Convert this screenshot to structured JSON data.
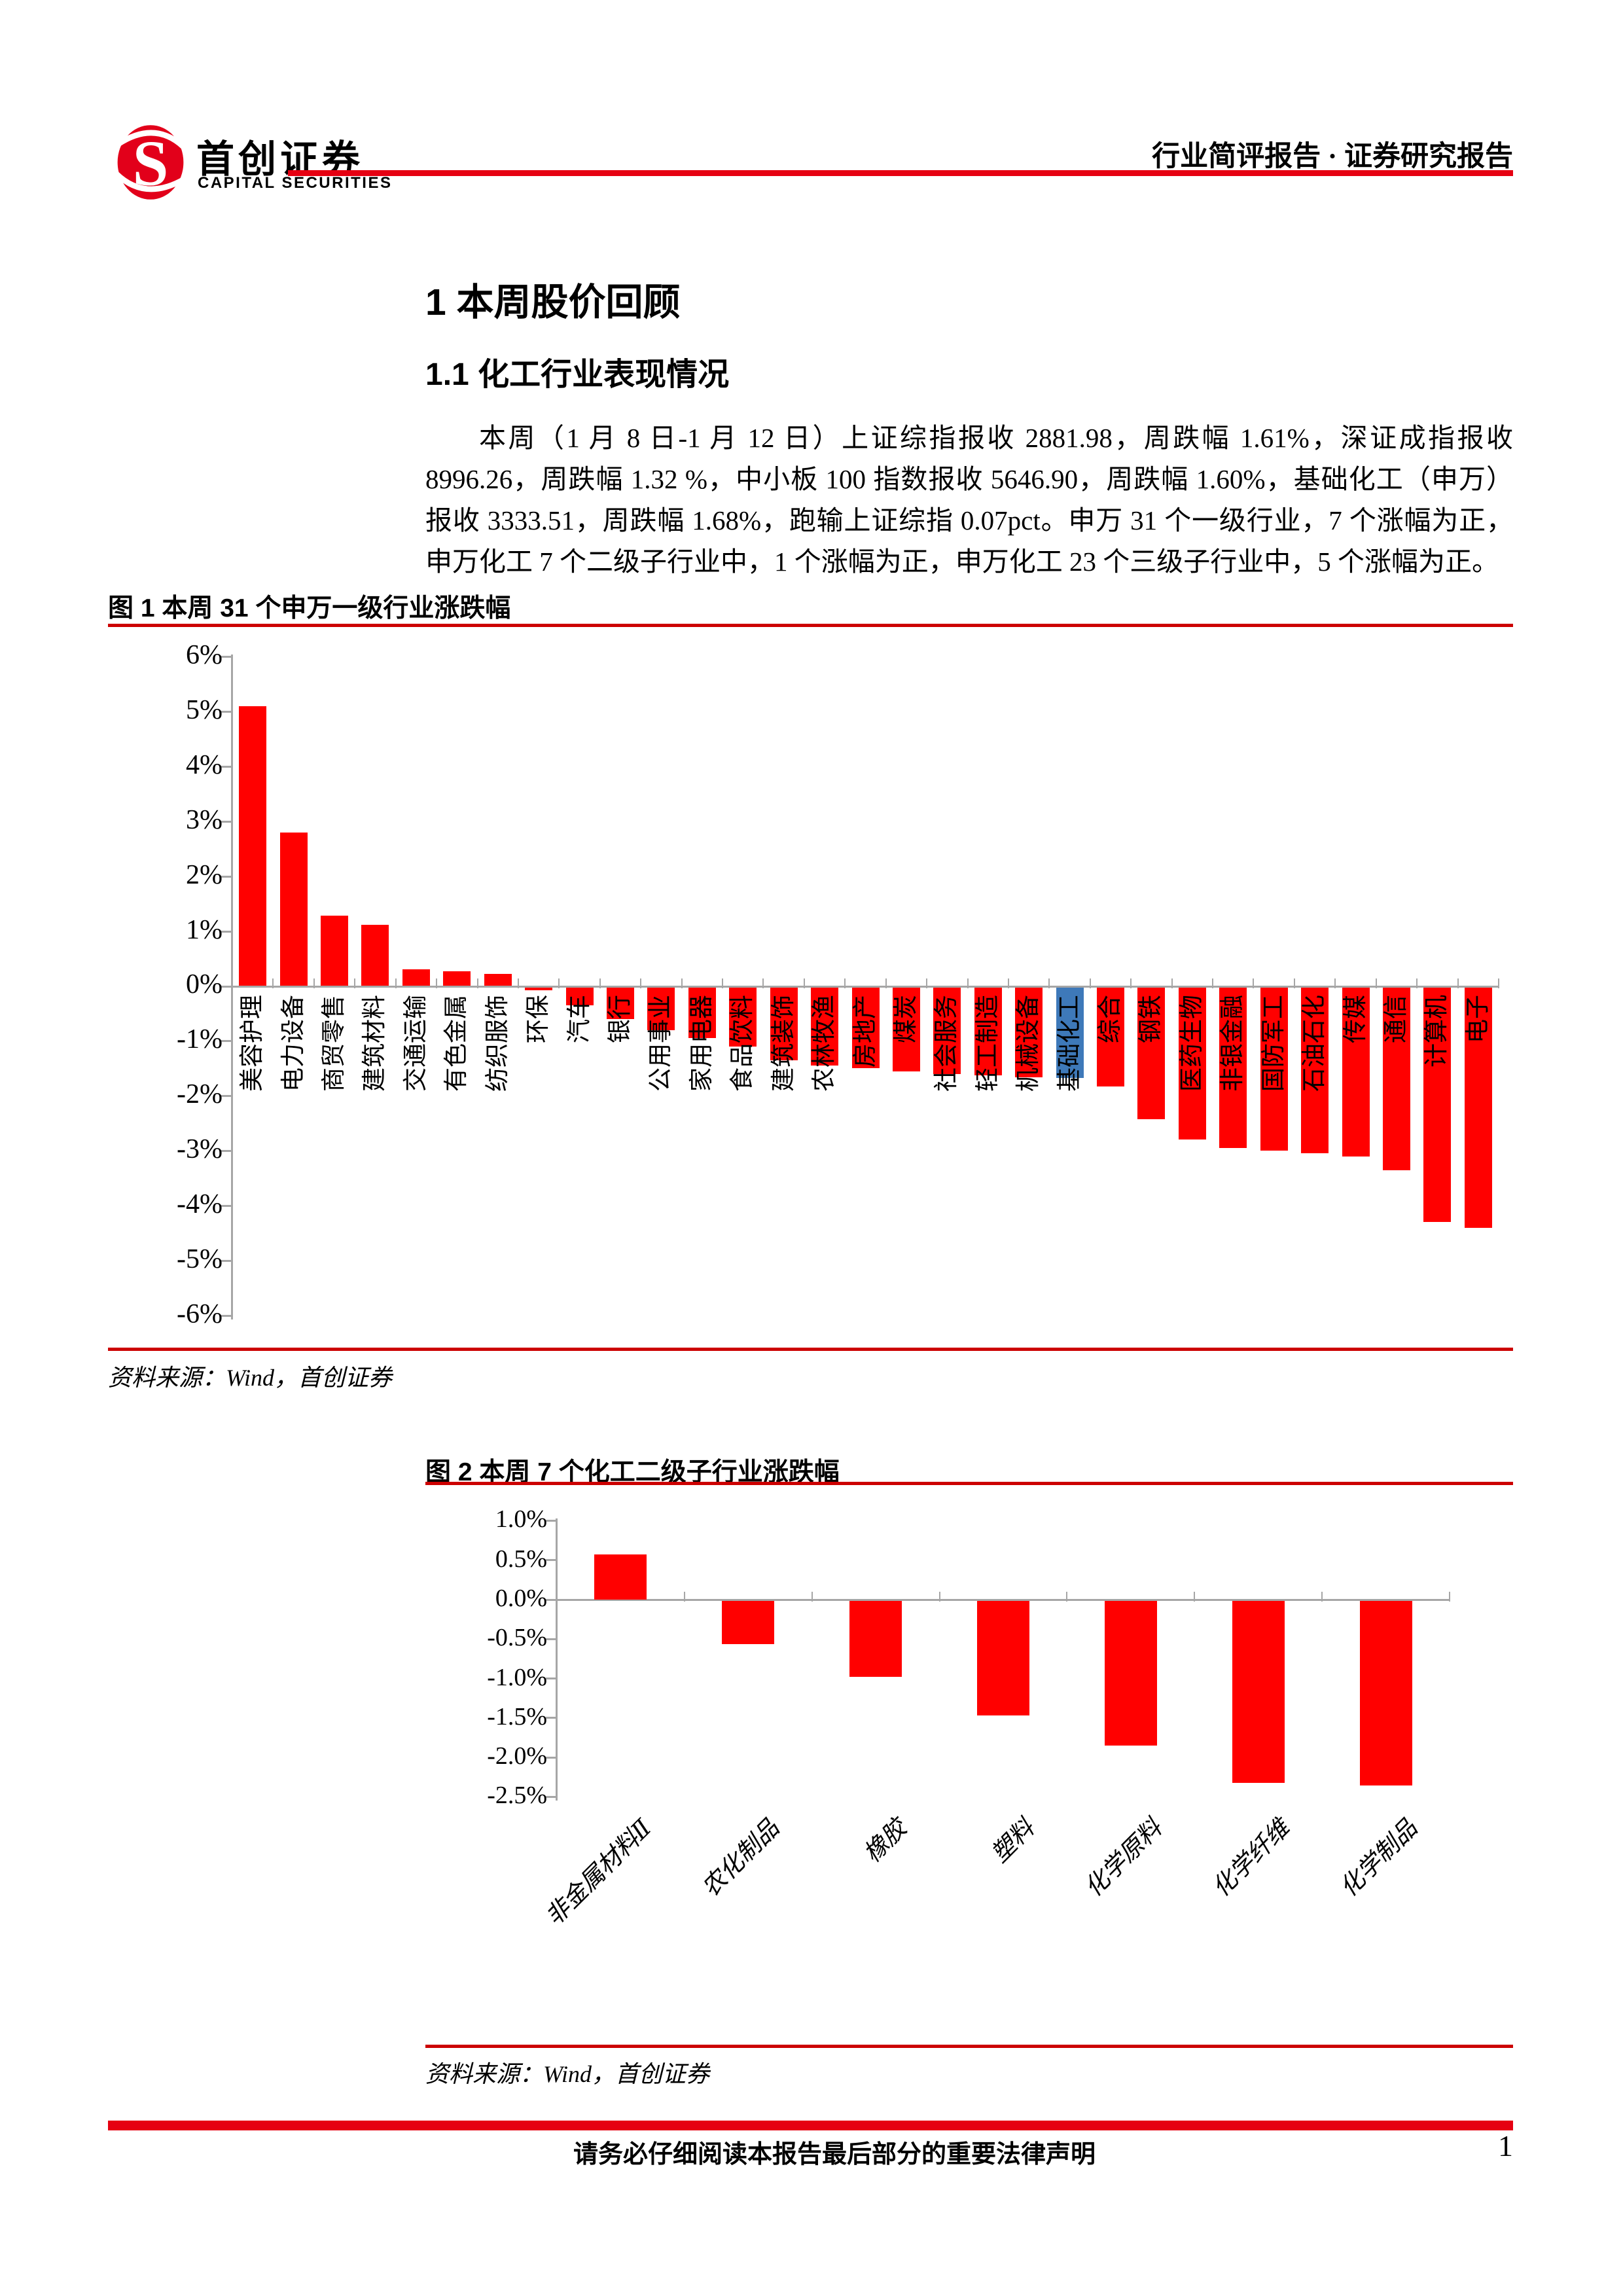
{
  "header": {
    "brand_cn": "首创证券",
    "brand_en": "CAPITAL SECURITIES",
    "report_type": "行业简评报告 · 证券研究报告"
  },
  "headings": {
    "h1": "1 本周股价回顾",
    "h2": "1.1 化工行业表现情况"
  },
  "paragraph": "本周（1 月 8 日-1 月 12 日）上证综指报收 2881.98，周跌幅 1.61%，深证成指报收 8996.26，周跌幅 1.32 %，中小板 100 指数报收 5646.90，周跌幅 1.60%，基础化工（申万）报收 3333.51，周跌幅 1.68%，跑输上证综指 0.07pct。申万 31 个一级行业，7 个涨幅为正，申万化工 7 个二级子行业中，1 个涨幅为正，申万化工 23 个三级子行业中，5 个涨幅为正。",
  "figure1": {
    "caption": "图 1 本周 31 个申万一级行业涨跌幅",
    "source": "资料来源：Wind，首创证券"
  },
  "figure2": {
    "caption": "图 2 本周 7 个化工二级子行业涨跌幅",
    "source": "资料来源：Wind，首创证券"
  },
  "footer": {
    "disclaimer": "请务必仔细阅读本报告最后部分的重要法律声明",
    "page_number": "1"
  },
  "colors": {
    "bar_red": "#ff0000",
    "bar_highlight_blue": "#3e79b9",
    "accent_red": "#e60012",
    "caption_line_red": "#cc0000",
    "axis_gray": "#a6a6a6"
  },
  "chart_data": [
    {
      "id": "fig1",
      "type": "bar",
      "title": "图 1 本周 31 个申万一级行业涨跌幅",
      "unit": "%",
      "categories": [
        "美容护理",
        "电力设备",
        "商贸零售",
        "建筑材料",
        "交通运输",
        "有色金属",
        "纺织服饰",
        "环保",
        "汽车",
        "银行",
        "公用事业",
        "家用电器",
        "食品饮料",
        "建筑装饰",
        "农林牧渔",
        "房地产",
        "煤炭",
        "社会服务",
        "轻工制造",
        "机械设备",
        "基础化工",
        "综合",
        "钢铁",
        "医药生物",
        "非银金融",
        "国防军工",
        "石油石化",
        "传媒",
        "通信",
        "计算机",
        "电子"
      ],
      "values": [
        5.1,
        2.8,
        1.28,
        1.12,
        0.3,
        0.27,
        0.22,
        -0.08,
        -0.35,
        -0.6,
        -0.8,
        -0.95,
        -1.1,
        -1.35,
        -1.45,
        -1.5,
        -1.55,
        -1.6,
        -1.63,
        -1.66,
        -1.68,
        -1.83,
        -2.42,
        -2.8,
        -2.95,
        -3.0,
        -3.05,
        -3.1,
        -3.35,
        -4.3,
        -4.4
      ],
      "highlight": {
        "category": "基础化工",
        "color": "#3e79b9"
      },
      "bar_color": "#ff0000",
      "ylim": [
        -6,
        6
      ],
      "yticks": [
        6,
        5,
        4,
        3,
        2,
        1,
        0,
        -1,
        -2,
        -3,
        -4,
        -5,
        -6
      ],
      "ytick_labels": [
        "6%",
        "5%",
        "4%",
        "3%",
        "2%",
        "1%",
        "0%",
        "-1%",
        "-2%",
        "-3%",
        "-4%",
        "-5%",
        "-6%"
      ],
      "xlabel_rotation": -90,
      "grid": false,
      "legend": null
    },
    {
      "id": "fig2",
      "type": "bar",
      "title": "图 2 本周 7 个化工二级子行业涨跌幅",
      "unit": "%",
      "categories": [
        "非金属材料Ⅱ",
        "农化制品",
        "橡胶",
        "塑料",
        "化学原料",
        "化学纤维",
        "化学制品"
      ],
      "values": [
        0.57,
        -0.57,
        -0.98,
        -1.47,
        -1.85,
        -2.33,
        -2.36
      ],
      "highlight": null,
      "bar_color": "#ff0000",
      "ylim": [
        -2.5,
        1.0
      ],
      "yticks": [
        1.0,
        0.5,
        0.0,
        -0.5,
        -1.0,
        -1.5,
        -2.0,
        -2.5
      ],
      "ytick_labels": [
        "1.0%",
        "0.5%",
        "0.0%",
        "-0.5%",
        "-1.0%",
        "-1.5%",
        "-2.0%",
        "-2.5%"
      ],
      "xlabel_rotation": -45,
      "grid": false,
      "legend": null
    }
  ]
}
